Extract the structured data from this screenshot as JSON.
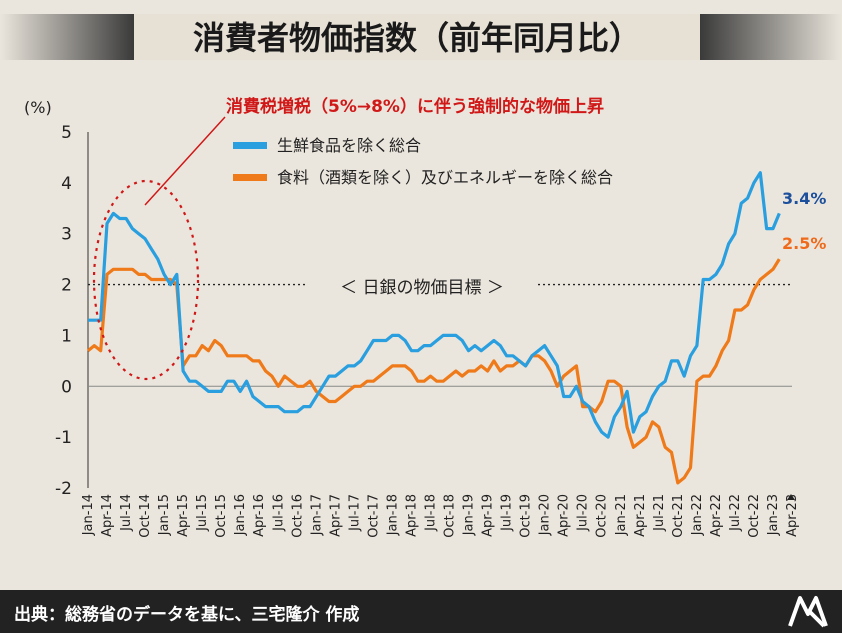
{
  "title": "消費者物価指数（前年同月比）",
  "unit": "(%)",
  "footer": "出典：総務省のデータを基に、三宅隆介 作成",
  "annotation_tax": "消費税増税（5%→8%）に伴う強制的な物価上昇",
  "target_label": "＜ 日銀の物価目標 ＞",
  "legend": [
    {
      "label": "生鮮食品を除く総合",
      "color": "#2a9fe0"
    },
    {
      "label": "食料（酒類を除く）及びエネルギーを除く総合",
      "color": "#ef7a1a"
    }
  ],
  "end_labels": [
    {
      "text": "3.4%",
      "color": "#1c4f9c"
    },
    {
      "text": "2.5%",
      "color": "#ef6a1a"
    }
  ],
  "chart_data": {
    "type": "line",
    "ylim": [
      -2,
      5
    ],
    "yticks": [
      -2,
      -1,
      0,
      1,
      2,
      3,
      4,
      5
    ],
    "target": 2,
    "xtick_labels": [
      "Jan-14",
      "Apr-14",
      "Jul-14",
      "Oct-14",
      "Jan-15",
      "Apr-15",
      "Jul-15",
      "Oct-15",
      "Jan-16",
      "Apr-16",
      "Jul-16",
      "Oct-16",
      "Jan-17",
      "Apr-17",
      "Jul-17",
      "Oct-17",
      "Jan-18",
      "Apr-18",
      "Jul-18",
      "Oct-18",
      "Jan-19",
      "Apr-19",
      "Jul-19",
      "Oct-19",
      "Jan-20",
      "Apr-20",
      "Jul-20",
      "Oct-20",
      "Jan-21",
      "Apr-21",
      "Jul-21",
      "Oct-21",
      "Jan-22",
      "Apr-22",
      "Jul-22",
      "Oct-22",
      "Jan-23",
      "Apr-23"
    ],
    "start": "2014-01",
    "series": [
      {
        "name": "生鮮食品を除く総合",
        "color": "#2a9fe0",
        "values": [
          1.3,
          1.3,
          1.3,
          3.2,
          3.4,
          3.3,
          3.3,
          3.1,
          3.0,
          2.9,
          2.7,
          2.5,
          2.2,
          2.0,
          2.2,
          0.3,
          0.1,
          0.1,
          0.0,
          -0.1,
          -0.1,
          -0.1,
          0.1,
          0.1,
          -0.1,
          0.1,
          -0.2,
          -0.3,
          -0.4,
          -0.4,
          -0.4,
          -0.5,
          -0.5,
          -0.5,
          -0.4,
          -0.4,
          -0.2,
          0.0,
          0.2,
          0.2,
          0.3,
          0.4,
          0.4,
          0.5,
          0.7,
          0.9,
          0.9,
          0.9,
          1.0,
          1.0,
          0.9,
          0.7,
          0.7,
          0.8,
          0.8,
          0.9,
          1.0,
          1.0,
          1.0,
          0.9,
          0.7,
          0.8,
          0.7,
          0.8,
          0.9,
          0.8,
          0.6,
          0.6,
          0.5,
          0.4,
          0.6,
          0.7,
          0.8,
          0.6,
          0.4,
          -0.2,
          -0.2,
          0.0,
          -0.3,
          -0.4,
          -0.7,
          -0.9,
          -1.0,
          -0.6,
          -0.4,
          -0.1,
          -0.9,
          -0.6,
          -0.5,
          -0.2,
          0.0,
          0.1,
          0.5,
          0.5,
          0.2,
          0.6,
          0.8,
          2.1,
          2.1,
          2.2,
          2.4,
          2.8,
          3.0,
          3.6,
          3.7,
          4.0,
          4.2,
          3.1,
          3.1,
          3.4
        ]
      },
      {
        "name": "食料（酒類を除く）及びエネルギーを除く総合",
        "color": "#ef7a1a",
        "values": [
          0.7,
          0.8,
          0.7,
          2.2,
          2.3,
          2.3,
          2.3,
          2.3,
          2.2,
          2.2,
          2.1,
          2.1,
          2.1,
          2.1,
          2.0,
          0.4,
          0.6,
          0.6,
          0.8,
          0.7,
          0.9,
          0.8,
          0.6,
          0.6,
          0.6,
          0.6,
          0.5,
          0.5,
          0.3,
          0.2,
          0.0,
          0.2,
          0.1,
          0.0,
          0.0,
          0.1,
          -0.1,
          -0.2,
          -0.3,
          -0.3,
          -0.2,
          -0.1,
          0.0,
          0.0,
          0.1,
          0.1,
          0.2,
          0.3,
          0.4,
          0.4,
          0.4,
          0.3,
          0.1,
          0.1,
          0.2,
          0.1,
          0.1,
          0.2,
          0.3,
          0.2,
          0.3,
          0.3,
          0.4,
          0.3,
          0.5,
          0.3,
          0.4,
          0.4,
          0.5,
          0.4,
          0.6,
          0.6,
          0.5,
          0.3,
          0.0,
          0.2,
          0.3,
          0.4,
          -0.4,
          -0.4,
          -0.5,
          -0.3,
          0.1,
          0.1,
          0.0,
          -0.8,
          -1.2,
          -1.1,
          -1.0,
          -0.7,
          -0.8,
          -1.2,
          -1.3,
          -1.9,
          -1.8,
          -1.6,
          0.1,
          0.2,
          0.2,
          0.4,
          0.7,
          0.9,
          1.5,
          1.5,
          1.6,
          1.9,
          2.1,
          2.2,
          2.3,
          2.5
        ]
      }
    ]
  }
}
